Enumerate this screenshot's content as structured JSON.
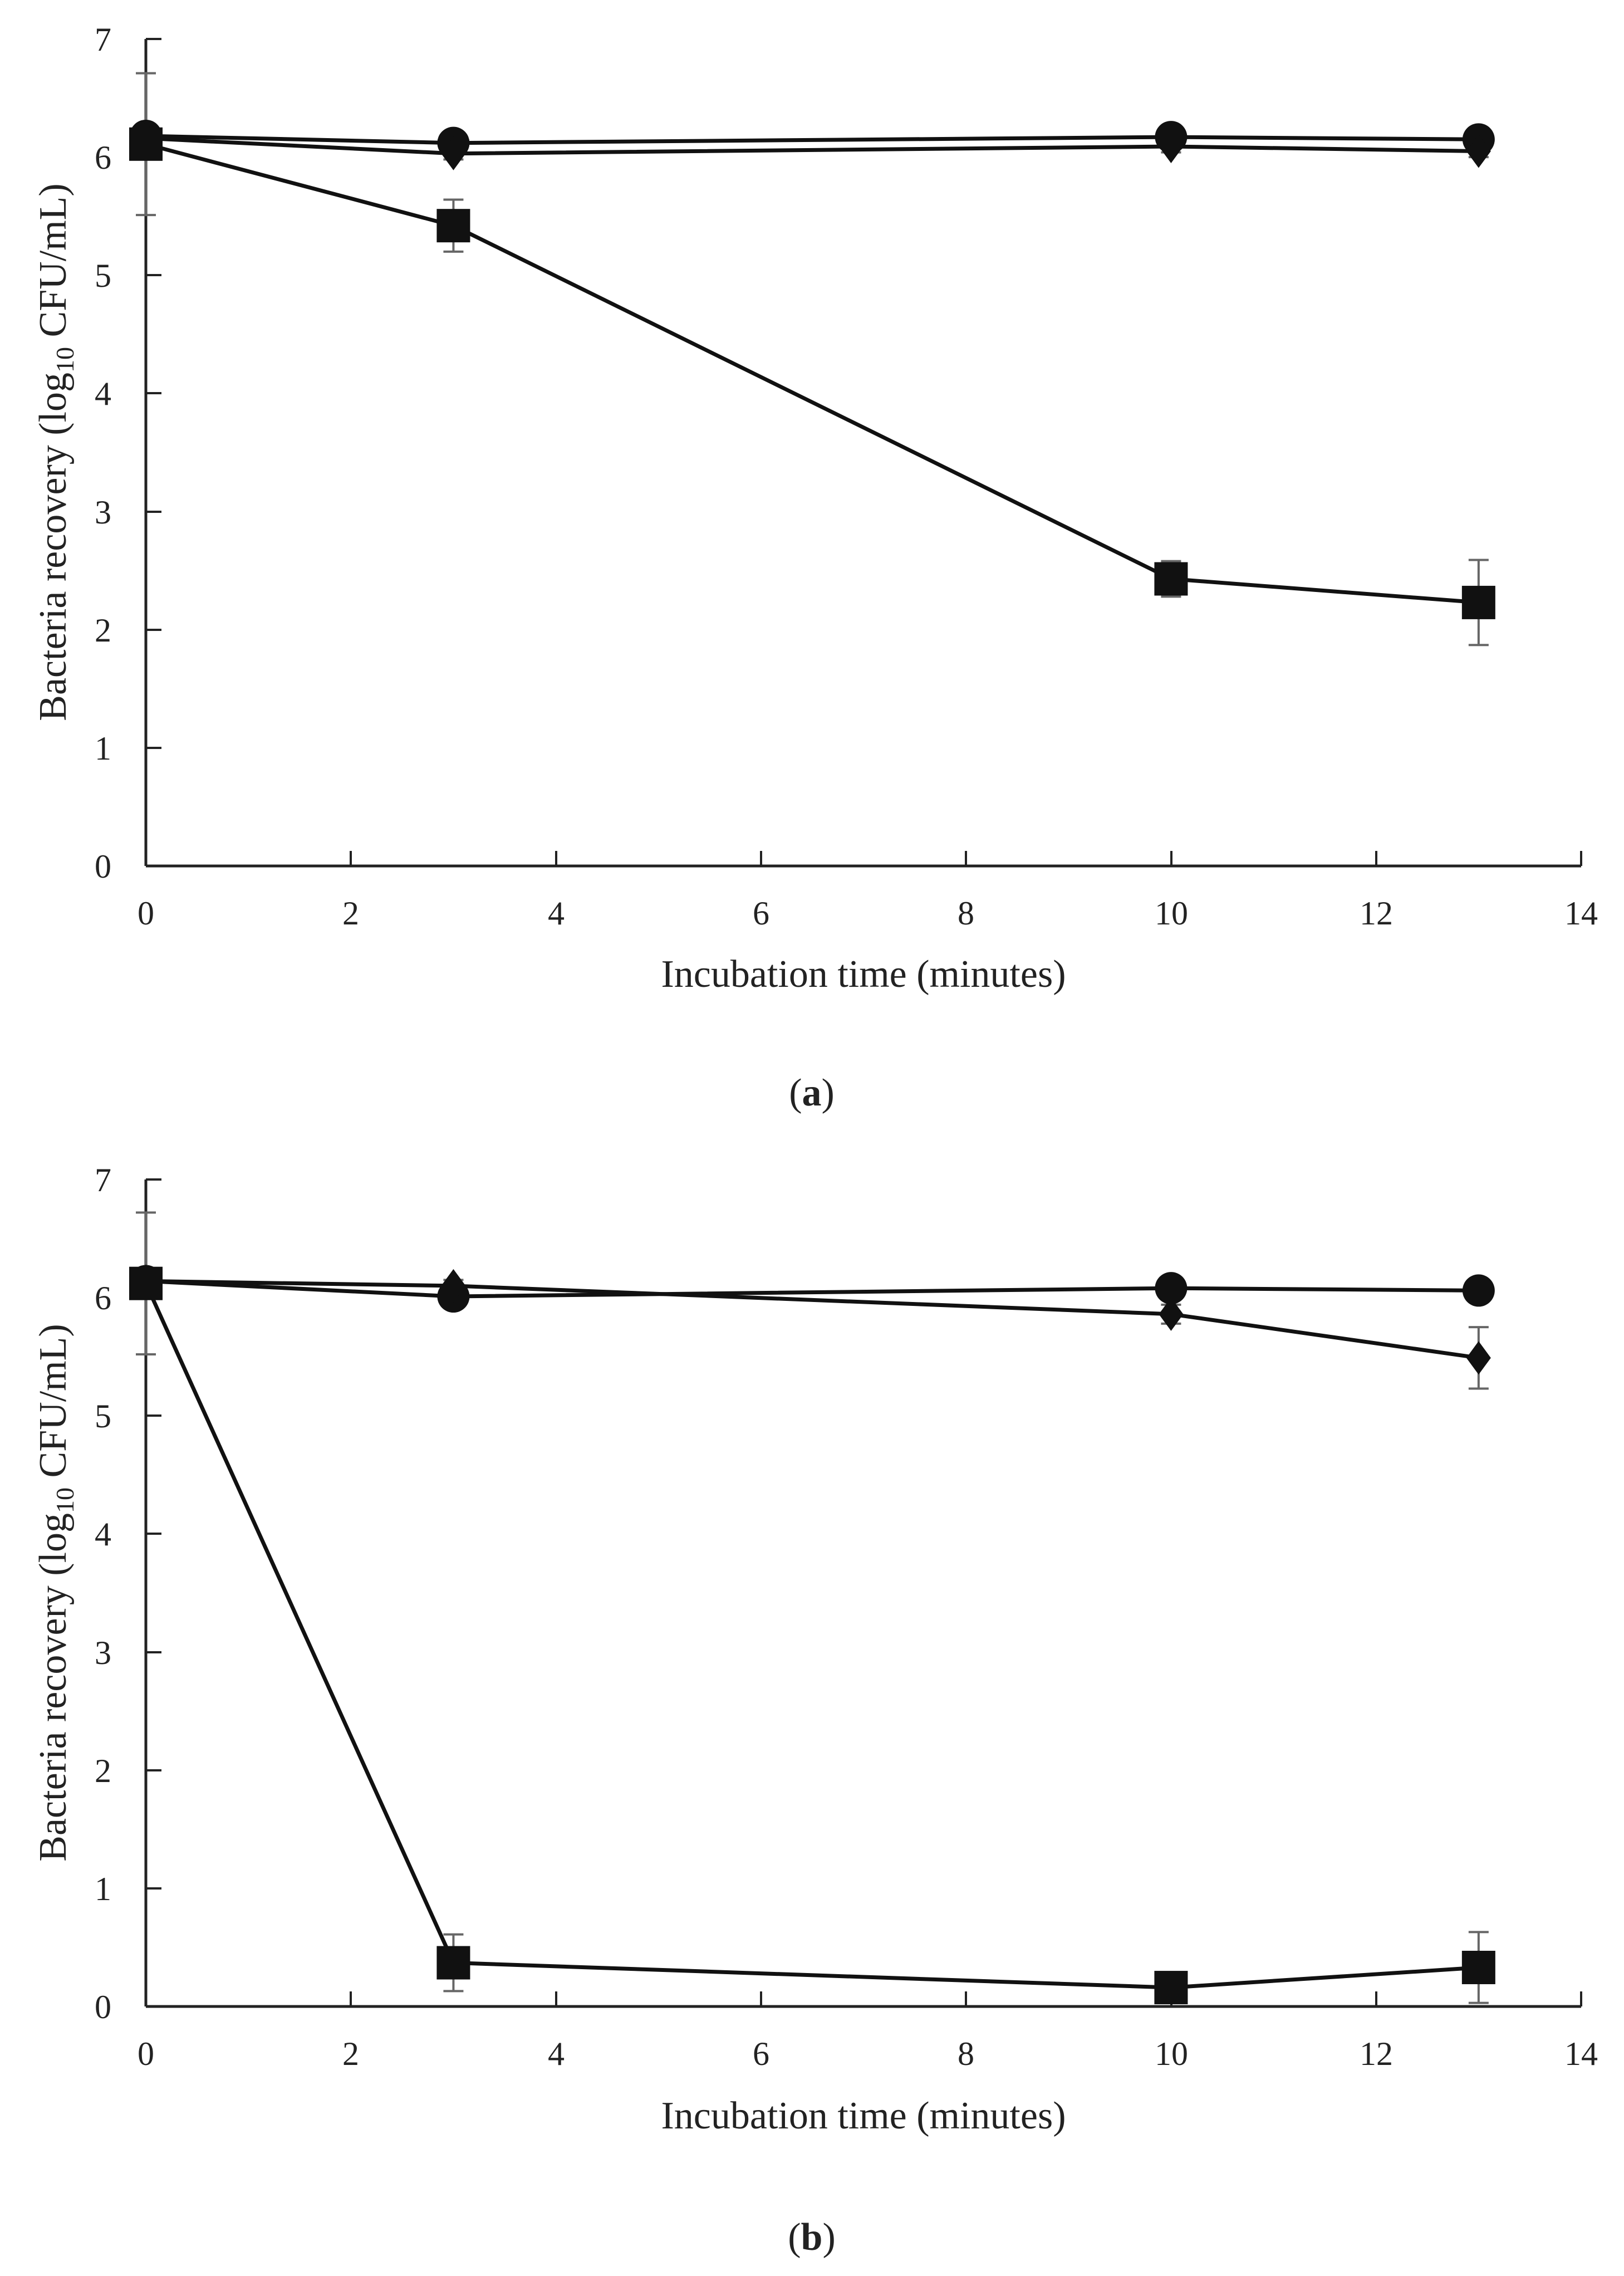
{
  "chart_data": [
    {
      "type": "line",
      "panel_label": "a",
      "xlabel": "Incubation time (minutes)",
      "ylabel": {
        "prefix": "Bacteria recovery (log",
        "subscript": "10",
        "suffix": " CFU/mL)"
      },
      "xlim": [
        0,
        14
      ],
      "ylim": [
        0,
        7
      ],
      "xticks": [
        "0",
        "2",
        "4",
        "6",
        "8",
        "10",
        "12",
        "14"
      ],
      "yticks": [
        "0",
        "1",
        "2",
        "3",
        "4",
        "5",
        "6",
        "7"
      ],
      "grid": false,
      "legend": "none",
      "series": [
        {
          "name": "circle",
          "marker": "circle",
          "x": [
            0,
            3,
            10,
            13
          ],
          "y": [
            6.18,
            6.12,
            6.17,
            6.15
          ],
          "err": [
            0.05,
            0.04,
            0.05,
            0.04
          ]
        },
        {
          "name": "diamond",
          "marker": "diamond",
          "x": [
            0,
            3,
            10,
            13
          ],
          "y": [
            6.16,
            6.03,
            6.09,
            6.05
          ],
          "err": [
            0.05,
            0.05,
            0.05,
            0.05
          ]
        },
        {
          "name": "square",
          "marker": "square",
          "x": [
            0,
            3,
            10,
            13
          ],
          "y": [
            6.11,
            5.42,
            2.43,
            2.23
          ],
          "err": [
            0.6,
            0.22,
            0.15,
            0.36
          ]
        }
      ]
    },
    {
      "type": "line",
      "panel_label": "b",
      "xlabel": "Incubation time (minutes)",
      "ylabel": {
        "prefix": "Bacteria recovery (log",
        "subscript": "10",
        "suffix": " CFU/mL)"
      },
      "xlim": [
        0,
        14
      ],
      "ylim": [
        0,
        7
      ],
      "xticks": [
        "0",
        "2",
        "4",
        "6",
        "8",
        "10",
        "12",
        "14"
      ],
      "yticks": [
        "0",
        "1",
        "2",
        "3",
        "4",
        "5",
        "6",
        "7"
      ],
      "grid": false,
      "legend": "none",
      "series": [
        {
          "name": "circle",
          "marker": "circle",
          "x": [
            0,
            3,
            10,
            13
          ],
          "y": [
            6.14,
            6.01,
            6.08,
            6.06
          ],
          "err": [
            0.04,
            0.04,
            0.04,
            0.04
          ]
        },
        {
          "name": "diamond",
          "marker": "diamond",
          "x": [
            0,
            3,
            10,
            13
          ],
          "y": [
            6.14,
            6.1,
            5.86,
            5.49
          ],
          "err": [
            0.04,
            0.05,
            0.08,
            0.26
          ]
        },
        {
          "name": "square",
          "marker": "square",
          "x": [
            0,
            3,
            10,
            13
          ],
          "y": [
            6.12,
            0.37,
            0.16,
            0.33
          ],
          "err": [
            0.6,
            0.24,
            0.09,
            0.3
          ]
        }
      ]
    }
  ]
}
